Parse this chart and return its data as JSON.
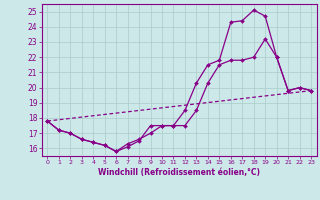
{
  "xlabel": "Windchill (Refroidissement éolien,°C)",
  "background_color": "#cce8e8",
  "grid_color": "#aacccc",
  "line_color": "#880088",
  "xlim_min": -0.5,
  "xlim_max": 23.5,
  "ylim_min": 15.5,
  "ylim_max": 25.5,
  "yticks": [
    16,
    17,
    18,
    19,
    20,
    21,
    22,
    23,
    24,
    25
  ],
  "xticks": [
    0,
    1,
    2,
    3,
    4,
    5,
    6,
    7,
    8,
    9,
    10,
    11,
    12,
    13,
    14,
    15,
    16,
    17,
    18,
    19,
    20,
    21,
    22,
    23
  ],
  "line1_x": [
    0,
    1,
    2,
    3,
    4,
    5,
    6,
    7,
    8,
    9,
    10,
    11,
    12,
    13,
    14,
    15,
    16,
    17,
    18,
    19,
    20,
    21,
    22,
    23
  ],
  "line1_y": [
    17.8,
    17.2,
    17.0,
    16.6,
    16.4,
    16.2,
    15.8,
    16.1,
    16.5,
    17.5,
    17.5,
    17.5,
    18.5,
    20.3,
    21.5,
    21.8,
    24.3,
    24.4,
    25.1,
    24.7,
    22.0,
    19.8,
    20.0,
    19.8
  ],
  "line2_x": [
    0,
    1,
    2,
    3,
    4,
    5,
    6,
    7,
    8,
    9,
    10,
    11,
    12,
    13,
    14,
    15,
    16,
    17,
    18,
    19,
    20,
    21,
    22,
    23
  ],
  "line2_y": [
    17.8,
    17.2,
    17.0,
    16.6,
    16.4,
    16.2,
    15.8,
    16.3,
    16.6,
    17.0,
    17.5,
    17.5,
    17.5,
    18.5,
    20.3,
    21.5,
    21.8,
    21.8,
    22.0,
    23.2,
    22.0,
    19.8,
    20.0,
    19.8
  ],
  "line3_x": [
    0,
    23
  ],
  "line3_y": [
    17.8,
    19.8
  ]
}
